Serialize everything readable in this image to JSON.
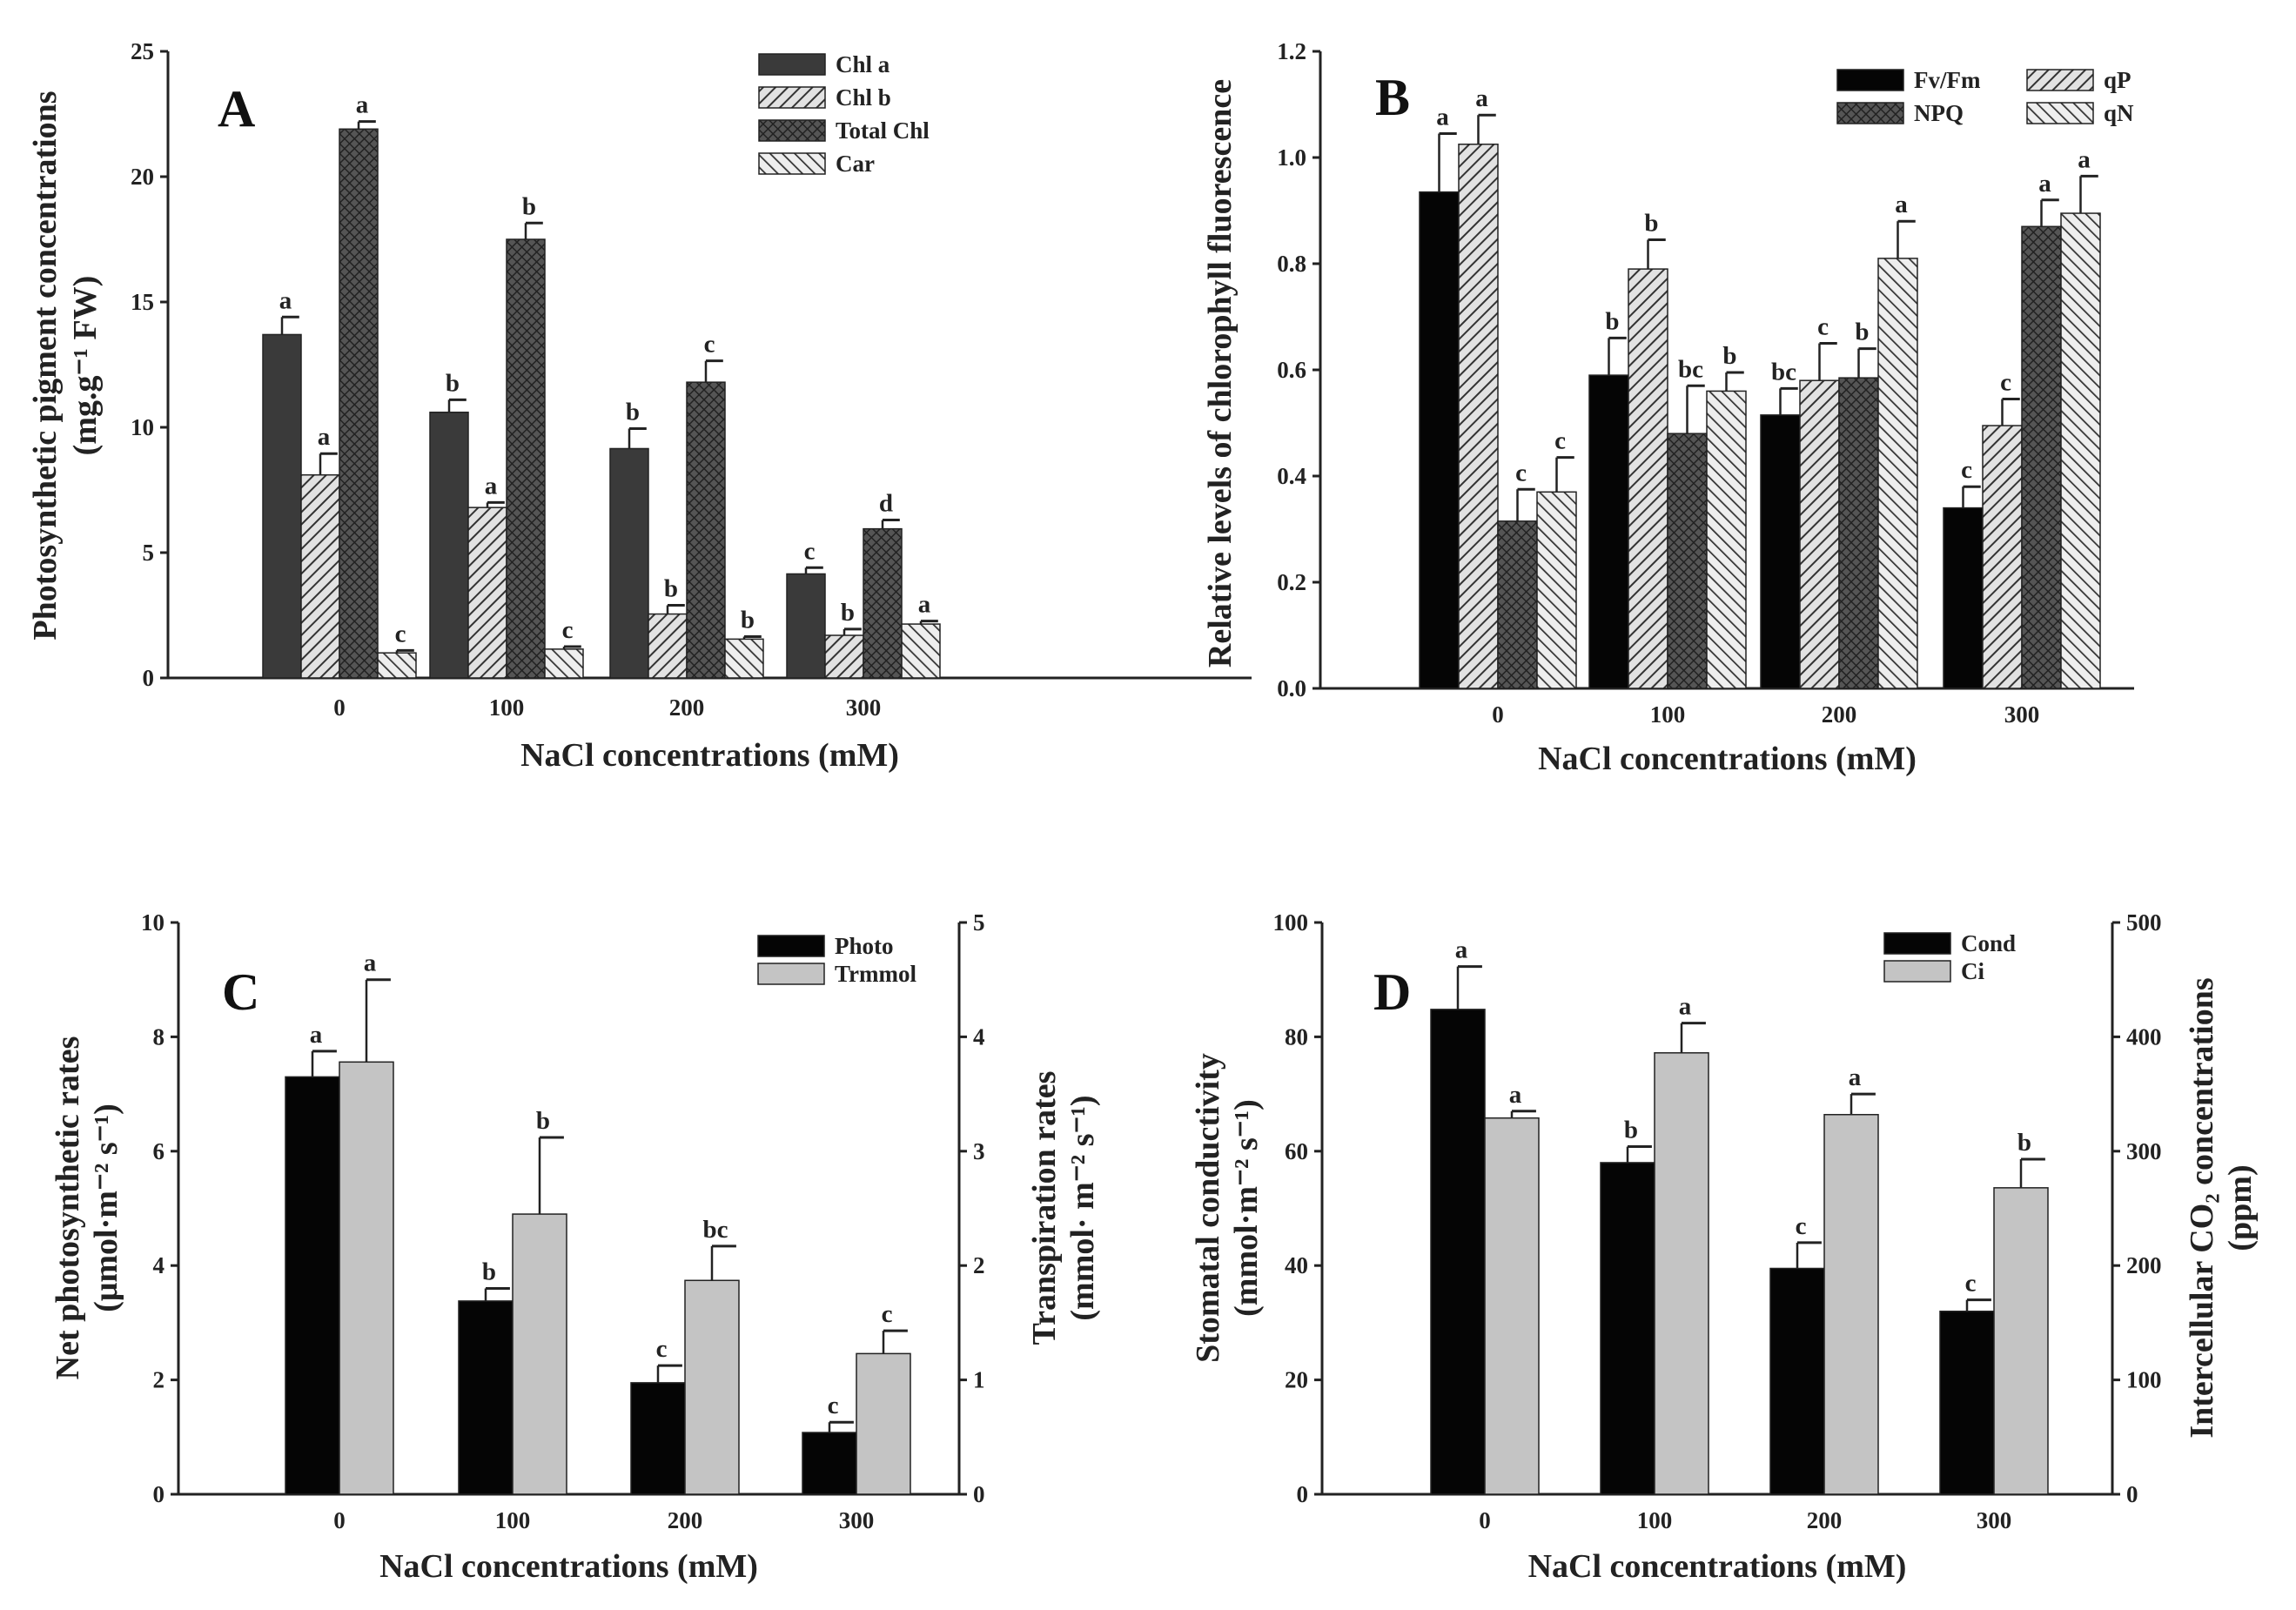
{
  "chart_data": [
    {
      "panel": "A",
      "type": "bar",
      "categories": [
        "0",
        "100",
        "200",
        "300"
      ],
      "xlabel": "NaCl concentrations (mM)",
      "ylabel": [
        "Photosynthetic pigment concentrations",
        "(mg.g⁻¹ FW)"
      ],
      "ylim": [
        0,
        25
      ],
      "yticks": [
        "0",
        "5",
        "10",
        "15",
        "20",
        "25"
      ],
      "legend_position": "top-right",
      "series": [
        {
          "name": "Chl a",
          "pattern": "dark",
          "values": [
            13.7,
            10.6,
            9.15,
            4.15
          ],
          "errors": [
            0.7,
            0.5,
            0.8,
            0.25
          ],
          "letters": [
            "a",
            "b",
            "b",
            "c"
          ]
        },
        {
          "name": "Chl b",
          "pattern": "hatch",
          "values": [
            8.1,
            6.8,
            2.55,
            1.7
          ],
          "errors": [
            0.85,
            0.2,
            0.35,
            0.25
          ],
          "letters": [
            "a",
            "a",
            "b",
            "b"
          ]
        },
        {
          "name": "Total Chl",
          "pattern": "cross",
          "values": [
            21.9,
            17.5,
            11.8,
            5.95
          ],
          "errors": [
            0.3,
            0.65,
            0.85,
            0.35
          ],
          "letters": [
            "a",
            "b",
            "c",
            "d"
          ]
        },
        {
          "name": "Car",
          "pattern": "bhatch",
          "values": [
            1.0,
            1.15,
            1.55,
            2.15
          ],
          "errors": [
            0.1,
            0.1,
            0.1,
            0.12
          ],
          "letters": [
            "c",
            "c",
            "b",
            "a"
          ]
        }
      ]
    },
    {
      "panel": "B",
      "type": "bar",
      "categories": [
        "0",
        "100",
        "200",
        "300"
      ],
      "xlabel": "NaCl concentrations (mM)",
      "ylabel": [
        "Relative levels of chlorophyll fluorescence"
      ],
      "ylim": [
        0,
        1.2
      ],
      "yticks": [
        "0.0",
        "0.2",
        "0.4",
        "0.6",
        "0.8",
        "1.0",
        "1.2"
      ],
      "legend_position": "top-right",
      "series": [
        {
          "name": "Fv/Fm",
          "pattern": "black",
          "values": [
            0.935,
            0.59,
            0.515,
            0.34
          ],
          "errors": [
            0.11,
            0.07,
            0.05,
            0.04
          ],
          "letters": [
            "a",
            "b",
            "bc",
            "c"
          ]
        },
        {
          "name": "qP",
          "pattern": "hatch",
          "values": [
            1.025,
            0.79,
            0.58,
            0.495
          ],
          "errors": [
            0.055,
            0.055,
            0.07,
            0.05
          ],
          "letters": [
            "a",
            "b",
            "c",
            "c"
          ]
        },
        {
          "name": "NPQ",
          "pattern": "cross",
          "values": [
            0.315,
            0.48,
            0.585,
            0.87
          ],
          "errors": [
            0.06,
            0.09,
            0.055,
            0.05
          ],
          "letters": [
            "c",
            "bc",
            "b",
            "a"
          ]
        },
        {
          "name": "qN",
          "pattern": "bhatch",
          "values": [
            0.37,
            0.56,
            0.81,
            0.895
          ],
          "errors": [
            0.065,
            0.035,
            0.07,
            0.07
          ],
          "letters": [
            "c",
            "b",
            "a",
            "a"
          ]
        }
      ]
    },
    {
      "panel": "C",
      "type": "bar",
      "categories": [
        "0",
        "100",
        "200",
        "300"
      ],
      "xlabel": "NaCl concentrations (mM)",
      "ylabel": [
        "Net photosynthetic rates",
        "(μmol·m⁻² s⁻¹)"
      ],
      "ylim": [
        0,
        10
      ],
      "yticks": [
        "0",
        "2",
        "4",
        "6",
        "8",
        "10"
      ],
      "y2label": [
        "Transpiration rates",
        "(mmol· m⁻² s⁻¹)"
      ],
      "y2lim": [
        0,
        5
      ],
      "y2ticks": [
        "0",
        "1",
        "2",
        "3",
        "4",
        "5"
      ],
      "legend_position": "top-right",
      "series": [
        {
          "name": "Photo",
          "pattern": "black",
          "axis": "left",
          "values": [
            7.3,
            3.38,
            1.95,
            1.08
          ],
          "errors": [
            0.45,
            0.22,
            0.3,
            0.18
          ],
          "letters": [
            "a",
            "b",
            "c",
            "c"
          ]
        },
        {
          "name": "Trmmol",
          "pattern": "gray",
          "axis": "right",
          "values": [
            3.78,
            2.45,
            1.87,
            1.23
          ],
          "errors": [
            0.72,
            0.67,
            0.3,
            0.2
          ],
          "letters": [
            "a",
            "b",
            "bc",
            "c"
          ]
        }
      ]
    },
    {
      "panel": "D",
      "type": "bar",
      "categories": [
        "0",
        "100",
        "200",
        "300"
      ],
      "xlabel": "NaCl concentrations (mM)",
      "ylabel": [
        "Stomatal conductivity",
        "(mmol·m⁻² s⁻¹)"
      ],
      "ylim": [
        0,
        100
      ],
      "yticks": [
        "0",
        "20",
        "40",
        "60",
        "80",
        "100"
      ],
      "y2label": [
        "Intercellular CO₂ concentrations",
        "(ppm)"
      ],
      "y2lim": [
        0,
        500
      ],
      "y2ticks": [
        "0",
        "100",
        "200",
        "300",
        "400",
        "500"
      ],
      "legend_position": "top-right",
      "series": [
        {
          "name": "Cond",
          "pattern": "black",
          "axis": "left",
          "values": [
            84.8,
            58,
            39.5,
            32
          ],
          "errors": [
            7.5,
            2.8,
            4.5,
            2
          ],
          "letters": [
            "a",
            "b",
            "c",
            "c"
          ]
        },
        {
          "name": "Ci",
          "pattern": "gray",
          "axis": "right",
          "values": [
            329,
            386,
            332,
            268
          ],
          "errors": [
            6,
            26,
            18,
            25
          ],
          "letters": [
            "a",
            "a",
            "a",
            "b"
          ]
        }
      ]
    }
  ]
}
